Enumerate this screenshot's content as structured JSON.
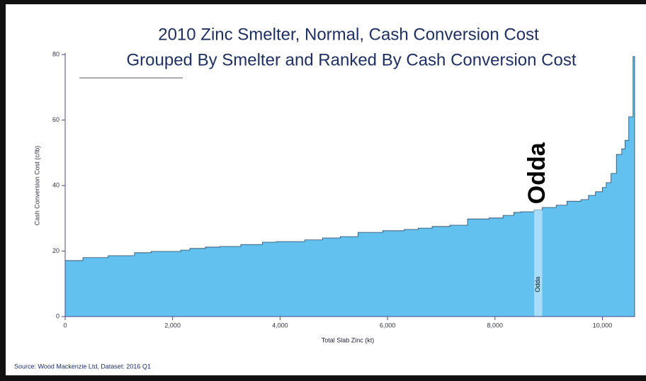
{
  "chart_data": {
    "type": "step_area",
    "title": "2010 Zinc Smelter, Normal, Cash Conversion Cost",
    "subtitle": "Grouped By Smelter and Ranked By Cash Conversion Cost",
    "x_label": "Total Slab Zinc (kt)",
    "y_label": "Cash Conversion Cost (c/lb)",
    "annotation": "Odda",
    "source": "Source: Wood Mackenzie Ltd, Dataset: 2016 Q1",
    "x": [
      0,
      330,
      800,
      1290,
      1600,
      2150,
      2320,
      2610,
      2880,
      3270,
      3670,
      3930,
      4460,
      4790,
      5120,
      5450,
      5910,
      6310,
      6570,
      6830,
      7160,
      7490,
      7890,
      8150,
      8350,
      8480,
      8730,
      8880,
      9140,
      9340,
      9600,
      9740,
      9870,
      10000,
      10070,
      10160,
      10260,
      10360,
      10420,
      10490,
      10570
    ],
    "values": [
      17.1,
      18.0,
      18.6,
      19.5,
      19.9,
      20.3,
      20.8,
      21.2,
      21.4,
      22.0,
      22.7,
      22.9,
      23.4,
      24.0,
      24.4,
      25.7,
      26.2,
      26.6,
      27.0,
      27.5,
      27.9,
      29.8,
      30.1,
      30.9,
      31.8,
      32.0,
      32.6,
      33.3,
      34.0,
      35.2,
      35.7,
      37.0,
      38.1,
      39.4,
      40.9,
      43.7,
      49.5,
      51.2,
      53.8,
      61.0,
      79.4
    ],
    "categories": [
      null,
      null,
      null,
      null,
      null,
      null,
      null,
      null,
      null,
      null,
      null,
      null,
      null,
      null,
      null,
      null,
      null,
      null,
      null,
      null,
      null,
      null,
      null,
      null,
      null,
      null,
      "Odda",
      null,
      null,
      null,
      null,
      null,
      null,
      null,
      null,
      null,
      null,
      null,
      null,
      null,
      null
    ],
    "color": "#63c1f0",
    "highlight_color": "#a9dcf7",
    "xlim": [
      0,
      10600
    ],
    "ylim": [
      0,
      80
    ],
    "xticks": [
      0,
      {
        "value": 2000,
        "label": "2,000"
      },
      {
        "value": 4000,
        "label": "4,000"
      },
      {
        "value": 6000,
        "label": "6,000"
      },
      {
        "value": 8000,
        "label": "8,000"
      },
      {
        "value": 10000,
        "label": "10,000"
      }
    ],
    "yticks": [
      0,
      20,
      40,
      60,
      80
    ]
  }
}
